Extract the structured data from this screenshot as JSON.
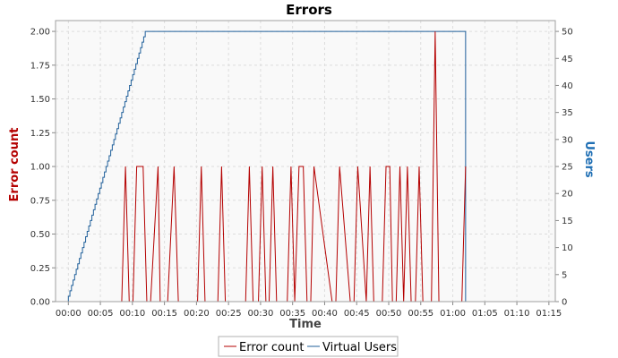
{
  "chart_data": {
    "type": "line",
    "title": "Errors",
    "xlabel": "Time",
    "ylabel_left": "Error count",
    "ylabel_right": "Users",
    "x_ticks": [
      "00:00",
      "00:05",
      "00:10",
      "00:15",
      "00:20",
      "00:25",
      "00:30",
      "00:35",
      "00:40",
      "00:45",
      "00:50",
      "00:55",
      "01:00",
      "01:05",
      "01:10",
      "01:15"
    ],
    "y_left_ticks": [
      "0.00",
      "0.25",
      "0.50",
      "0.75",
      "1.00",
      "1.25",
      "1.50",
      "1.75",
      "2.00"
    ],
    "y_right_ticks": [
      "0",
      "5",
      "10",
      "15",
      "20",
      "25",
      "30",
      "35",
      "40",
      "45",
      "50"
    ],
    "xlim_seconds": [
      -120,
      4560
    ],
    "ylim_left": [
      0,
      2.08
    ],
    "ylim_right": [
      0,
      52
    ],
    "grid": true,
    "legend_position": "bottom",
    "colors": {
      "error_count": "#b40000",
      "virtual_users": "#1f5f9a",
      "plot_bg": "#f9f9f9"
    },
    "series": [
      {
        "name": "Error count",
        "axis": "left",
        "x_seconds": [
          0,
          500,
          535,
          570,
          605,
          640,
          700,
          735,
          770,
          840,
          860,
          895,
          930,
          990,
          1030,
          1210,
          1245,
          1280,
          1400,
          1435,
          1470,
          1660,
          1695,
          1730,
          1780,
          1815,
          1850,
          1880,
          1915,
          1950,
          2050,
          2085,
          2120,
          2160,
          2200,
          2235,
          2270,
          2300,
          2470,
          2505,
          2540,
          2640,
          2675,
          2710,
          2790,
          2825,
          2860,
          2940,
          2975,
          3010,
          3035,
          3070,
          3105,
          3140,
          3175,
          3210,
          3250,
          3285,
          3320,
          3400,
          3435,
          3470,
          3650,
          3685,
          3720
        ],
        "values": [
          0,
          0,
          1,
          0,
          0,
          1,
          1,
          0,
          0,
          1,
          0,
          0,
          0,
          1,
          0,
          0,
          1,
          0,
          0,
          1,
          0,
          0,
          1,
          0,
          0,
          1,
          0,
          0,
          1,
          0,
          0,
          1,
          0,
          1,
          1,
          0,
          0,
          1,
          0,
          0,
          1,
          0,
          0,
          1,
          0,
          1,
          0,
          0,
          1,
          1,
          0,
          0,
          1,
          0,
          1,
          0,
          0,
          1,
          0,
          0,
          2,
          0,
          0,
          0,
          1
        ]
      },
      {
        "name": "Virtual Users",
        "axis": "right",
        "ramp_users": [
          1,
          50
        ],
        "ramp_seconds": [
          0,
          720
        ],
        "hold_end_seconds": 3720,
        "final_users": 0
      }
    ]
  }
}
